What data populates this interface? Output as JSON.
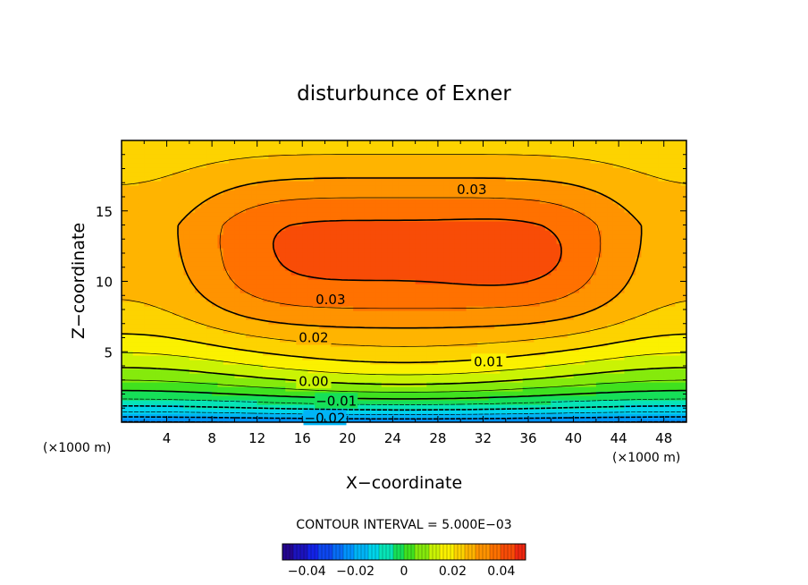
{
  "chart_data": {
    "type": "heatmap",
    "title": "disturbunce of Exner",
    "xlabel": "X−coordinate",
    "ylabel": "Z−coordinate",
    "x_unit_left": "(×1000 m)",
    "x_unit_right": "(×1000 m)",
    "xlim": [
      0,
      50
    ],
    "ylim": [
      0,
      20
    ],
    "x_ticks": [
      4,
      8,
      12,
      16,
      20,
      24,
      28,
      32,
      36,
      40,
      44,
      48
    ],
    "y_ticks": [
      5,
      10,
      15
    ],
    "contour_interval_text": "CONTOUR INTERVAL = 5.000E−03",
    "contour_labels": [
      {
        "text": "0.03",
        "x": 31,
        "z": 16.5
      },
      {
        "text": "0.03",
        "x": 18.5,
        "z": 8.7
      },
      {
        "text": "0.02",
        "x": 17,
        "z": 6.0
      },
      {
        "text": "0.01",
        "x": 32.5,
        "z": 4.3
      },
      {
        "text": "0.00",
        "x": 17,
        "z": 2.9
      },
      {
        "text": "−0.01",
        "x": 19,
        "z": 1.5
      },
      {
        "text": "−0.02",
        "x": 18,
        "z": 0.3
      }
    ],
    "field_summary": {
      "maximum": {
        "x": 34,
        "z": 11.8,
        "value": 0.037
      },
      "surface_value": -0.025,
      "top_value": 0.028
    },
    "colorbar": {
      "range": [
        -0.05,
        0.05
      ],
      "tick_labels": [
        "−0.04",
        "−0.02",
        "0",
        "0.02",
        "0.04"
      ],
      "tick_values": [
        -0.04,
        -0.02,
        0,
        0.02,
        0.04
      ]
    },
    "grid": false,
    "legend": "colorbar below plot"
  }
}
